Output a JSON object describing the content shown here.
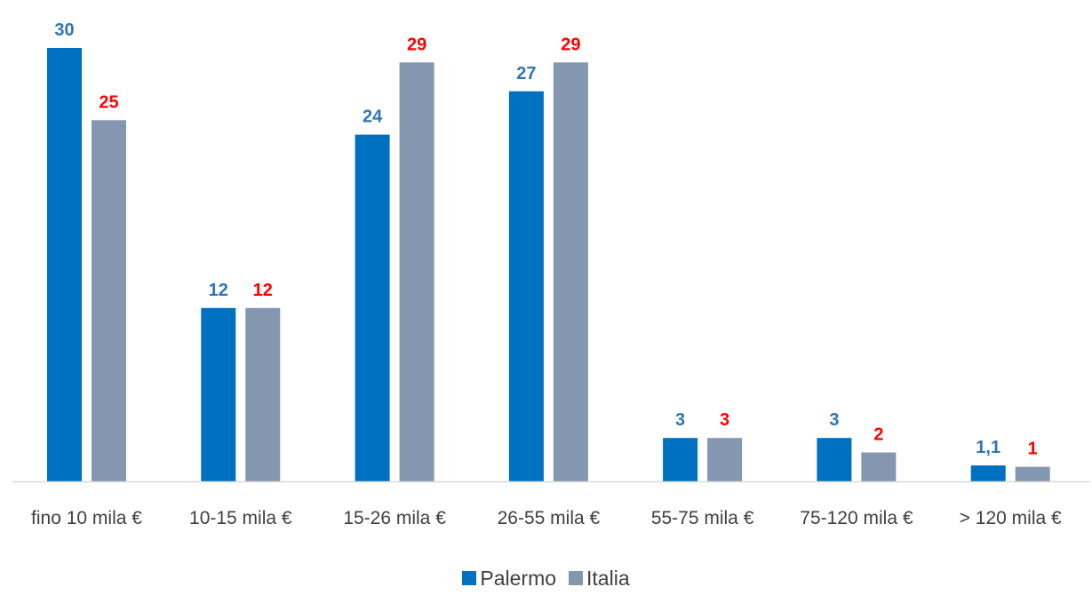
{
  "chart_data": {
    "type": "bar",
    "categories": [
      "fino 10 mila €",
      "10-15 mila €",
      "15-26 mila €",
      "26-55 mila €",
      "55-75 mila €",
      "75-120 mila €",
      "> 120 mila €"
    ],
    "series": [
      {
        "name": "Palermo",
        "values": [
          30,
          12,
          24,
          27,
          3,
          3,
          1.1
        ],
        "labels": [
          "30",
          "12",
          "24",
          "27",
          "3",
          "3",
          "1,1"
        ],
        "color": "#0070C0",
        "label_color": "#2E75B6"
      },
      {
        "name": "Italia",
        "values": [
          25,
          12,
          29,
          29,
          3,
          2,
          1
        ],
        "labels": [
          "25",
          "12",
          "29",
          "29",
          "3",
          "2",
          "1"
        ],
        "color": "#8497B0",
        "label_color": "#FF0000"
      }
    ],
    "ylim": [
      0,
      30
    ],
    "grid": false,
    "legend_position": "bottom-center",
    "xlabel": "",
    "ylabel": "",
    "title": ""
  },
  "axis_color": "#D9D9D9",
  "tick_label_color": "#404040"
}
